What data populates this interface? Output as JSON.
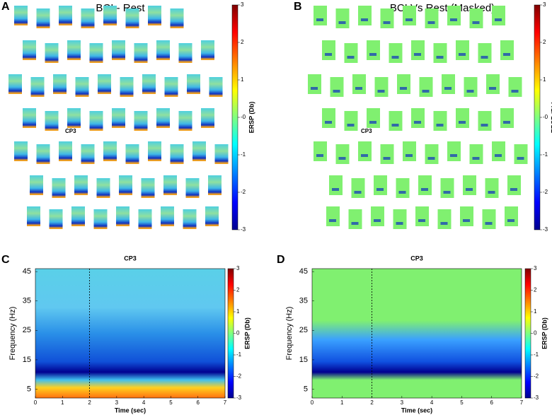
{
  "panels": [
    {
      "letter": "A",
      "title": "BCI - Rest",
      "electrode": "CP3",
      "colorbar": {
        "label": "ERSP (Db)",
        "lim": [
          -3,
          3
        ],
        "ticks": [
          -3,
          -2,
          -1,
          {
            "value": 0,
            "label": "-0"
          },
          1,
          2,
          3
        ]
      }
    },
    {
      "letter": "B",
      "title": "BCI Vs Rest (Masked)",
      "electrode": "CP3",
      "colorbar": {
        "label": "ERSP (Db)",
        "lim": [
          -3,
          3
        ],
        "ticks": [
          -3,
          -2,
          -1,
          {
            "value": 0,
            "label": "-0"
          },
          1,
          2,
          3
        ]
      }
    },
    {
      "letter": "C",
      "title": "CP3",
      "xlabel": "Time (sec)",
      "ylabel": "Frequency (Hz)",
      "xlim": [
        0,
        7
      ],
      "xticks": [
        0,
        1,
        2,
        3,
        4,
        5,
        6,
        7
      ],
      "ylim": [
        2,
        46
      ],
      "yticks": [
        5,
        15,
        25,
        35,
        45
      ],
      "colorbar": {
        "label": "ERSP (Db)",
        "lim": [
          -3,
          3
        ],
        "ticks": [
          -3,
          -2,
          -1,
          0,
          1,
          2,
          3
        ]
      }
    },
    {
      "letter": "D",
      "title": "CP3",
      "xlabel": "Time (sec)",
      "ylabel": "Frequency (Hz)",
      "xlim": [
        0,
        7
      ],
      "xticks": [
        0,
        1,
        2,
        3,
        4,
        5,
        6,
        7
      ],
      "ylim": [
        2,
        46
      ],
      "yticks": [
        5,
        15,
        25,
        35,
        45
      ],
      "colorbar": {
        "label": "ERSP (Db)",
        "lim": [
          -3,
          3
        ],
        "ticks": [
          -3,
          -2,
          -1,
          0,
          1,
          2,
          3
        ]
      }
    }
  ]
}
